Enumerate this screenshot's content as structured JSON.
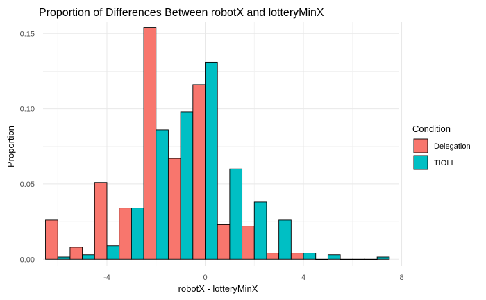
{
  "chart_data": {
    "type": "bar",
    "title": "Proportion of Differences Between robotX and lotteryMinX",
    "xlabel": "robotX - lotteryMinX",
    "ylabel": "Proportion",
    "xlim": [
      -6.6,
      7.9
    ],
    "ylim": [
      -0.0045,
      0.1575
    ],
    "x_ticks": [
      -4,
      0,
      4,
      8
    ],
    "x_tick_labels": [
      "-4",
      "0",
      "4",
      "8"
    ],
    "y_ticks": [
      0,
      0.05,
      0.1,
      0.15
    ],
    "y_tick_labels": [
      "0.00",
      "0.05",
      "0.10",
      "0.15"
    ],
    "grid": true,
    "bin_width": 1,
    "bin_centers": [
      -6,
      -5,
      -4,
      -3,
      -2,
      -1,
      0,
      1,
      2,
      3,
      4,
      5,
      6,
      7
    ],
    "series": [
      {
        "name": "Delegation",
        "color": "#F8766D",
        "values": [
          0.026,
          0.008,
          0.051,
          0.034,
          0.154,
          0.067,
          0.116,
          0.023,
          0.022,
          0.004,
          0.004,
          0.0,
          0.0,
          0.0
        ]
      },
      {
        "name": "TIOLI",
        "color": "#00BFC4",
        "values": [
          0.0015,
          0.003,
          0.009,
          0.034,
          0.086,
          0.098,
          0.131,
          0.06,
          0.038,
          0.026,
          0.004,
          0.003,
          0.0,
          0.0015
        ]
      }
    ],
    "legend": {
      "title": "Condition",
      "position": "right"
    }
  }
}
